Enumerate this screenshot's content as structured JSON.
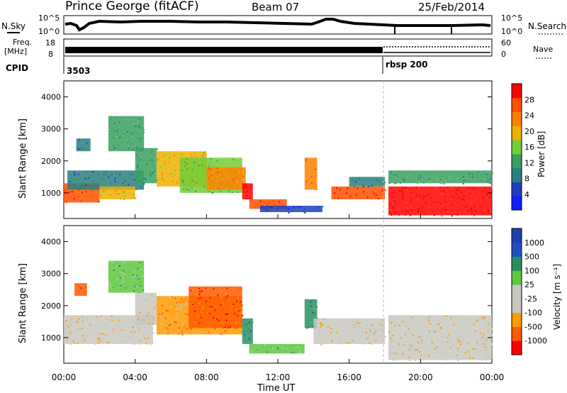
{
  "header": {
    "station": "Prince George (fitACF)",
    "beam": "Beam 07",
    "date": "25/Feb/2014"
  },
  "top_panels": {
    "nsky_label": "N.Sky",
    "nsearch_label": "N.Search",
    "count_tick_hi": "10^5",
    "count_tick_lo": "10^0",
    "freq_label_1": "Freq.",
    "freq_label_2": "[MHz]",
    "freq_tick_hi": "18",
    "freq_tick_lo": "8",
    "nave_label": "Nave",
    "nave_tick_hi": "60",
    "nave_tick_lo": "0",
    "cpid_label": "CPID",
    "cpid_1": "3503",
    "cpid_2": "rbsp 200"
  },
  "colors": {
    "power": [
      "#1020ff",
      "#1f3fbf",
      "#2a7f7f",
      "#3aa060",
      "#6fcf3a",
      "#f0b000",
      "#ff8000",
      "#ff5000",
      "#ff0000"
    ],
    "velocity": [
      "#ff0000",
      "#ff5a00",
      "#ff9a00",
      "#c8c8c0",
      "#c8c8c0",
      "#60c840",
      "#2a8f60",
      "#2050c0",
      "#2040b0"
    ]
  },
  "chart_data": [
    {
      "type": "heatmap",
      "title": "Power",
      "colorbar_label": "Power [dB]",
      "colorbar_ticks": [
        "28",
        "24",
        "20",
        "16",
        "12",
        "8",
        "4"
      ],
      "ylabel": "Slant Range [km]",
      "yticks": [
        "4000",
        "3000",
        "2000",
        "1000"
      ],
      "ylim": [
        200,
        4500
      ],
      "xlim_hours": [
        0,
        24
      ],
      "regions": [
        {
          "t0": 0.0,
          "t1": 2.0,
          "r0": 700,
          "r1": 1300,
          "level": 7
        },
        {
          "t0": 0.2,
          "t1": 4.5,
          "r0": 1100,
          "r1": 1700,
          "level": 2
        },
        {
          "t0": 2.0,
          "t1": 4.0,
          "r0": 800,
          "r1": 1200,
          "level": 5
        },
        {
          "t0": 4.0,
          "t1": 5.2,
          "r0": 1300,
          "r1": 2400,
          "level": 3
        },
        {
          "t0": 5.2,
          "t1": 8.0,
          "r0": 1200,
          "r1": 2300,
          "level": 5
        },
        {
          "t0": 6.5,
          "t1": 10.0,
          "r0": 1000,
          "r1": 2100,
          "level": 4
        },
        {
          "t0": 8.0,
          "t1": 10.2,
          "r0": 1100,
          "r1": 1800,
          "level": 6
        },
        {
          "t0": 10.0,
          "t1": 10.6,
          "r0": 800,
          "r1": 1300,
          "level": 8
        },
        {
          "t0": 10.4,
          "t1": 12.5,
          "r0": 500,
          "r1": 800,
          "level": 7
        },
        {
          "t0": 11.0,
          "t1": 14.5,
          "r0": 400,
          "r1": 600,
          "level": 1
        },
        {
          "t0": 13.5,
          "t1": 14.2,
          "r0": 1100,
          "r1": 2100,
          "level": 6
        },
        {
          "t0": 15.0,
          "t1": 18.0,
          "r0": 800,
          "r1": 1200,
          "level": 7
        },
        {
          "t0": 16.0,
          "t1": 18.0,
          "r0": 1200,
          "r1": 1500,
          "level": 2
        },
        {
          "t0": 18.2,
          "t1": 24.0,
          "r0": 300,
          "r1": 1200,
          "level": 8
        },
        {
          "t0": 18.2,
          "t1": 24.0,
          "r0": 1300,
          "r1": 1700,
          "level": 3
        },
        {
          "t0": 2.5,
          "t1": 4.5,
          "r0": 2300,
          "r1": 3400,
          "level": 3
        },
        {
          "t0": 0.7,
          "t1": 1.5,
          "r0": 2300,
          "r1": 2700,
          "level": 2
        }
      ]
    },
    {
      "type": "heatmap",
      "title": "Velocity",
      "colorbar_label": "Velocity [m s⁻¹]",
      "colorbar_ticks": [
        "1000",
        "500",
        "100",
        "25",
        "-25",
        "-100",
        "-500",
        "-1000"
      ],
      "ylabel": "Slant Range [km]",
      "yticks": [
        "4000",
        "3000",
        "2000",
        "1000"
      ],
      "xlabel": "Time UT",
      "xticks": [
        "00:00",
        "04:00",
        "08:00",
        "12:00",
        "16:00",
        "20:00",
        "00:00"
      ],
      "ylim": [
        200,
        4500
      ],
      "xlim_hours": [
        0,
        24
      ],
      "regions": [
        {
          "t0": 0.0,
          "t1": 5.0,
          "r0": 800,
          "r1": 1700,
          "level": 3
        },
        {
          "t0": 5.2,
          "t1": 10.0,
          "r0": 1100,
          "r1": 2300,
          "level": 2
        },
        {
          "t0": 7.0,
          "t1": 10.0,
          "r0": 1300,
          "r1": 2600,
          "level": 1
        },
        {
          "t0": 10.0,
          "t1": 10.6,
          "r0": 800,
          "r1": 1600,
          "level": 6
        },
        {
          "t0": 10.4,
          "t1": 13.5,
          "r0": 500,
          "r1": 800,
          "level": 5
        },
        {
          "t0": 13.5,
          "t1": 14.2,
          "r0": 1300,
          "r1": 2200,
          "level": 6
        },
        {
          "t0": 14.0,
          "t1": 18.0,
          "r0": 800,
          "r1": 1600,
          "level": 3
        },
        {
          "t0": 18.2,
          "t1": 24.0,
          "r0": 300,
          "r1": 1700,
          "level": 3
        },
        {
          "t0": 0.6,
          "t1": 1.3,
          "r0": 2300,
          "r1": 2700,
          "level": 1
        },
        {
          "t0": 2.5,
          "t1": 4.5,
          "r0": 2400,
          "r1": 3400,
          "level": 5
        },
        {
          "t0": 4.0,
          "t1": 5.2,
          "r0": 1400,
          "r1": 2400,
          "level": 3
        }
      ]
    }
  ]
}
